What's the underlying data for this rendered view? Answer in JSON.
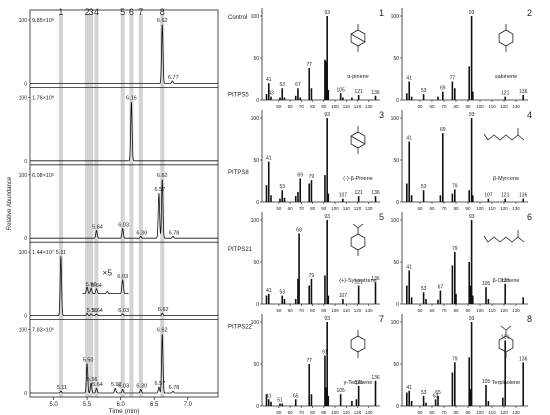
{
  "chart_data": [
    {
      "type": "line",
      "xlabel": "Time (min)",
      "ylabel": "Relative Abundance",
      "xlim": [
        4.65,
        7.45
      ],
      "x_ticks": [
        "5.0",
        "5.5",
        "6.0",
        "6.5",
        "7.0"
      ],
      "peak_markers": [
        {
          "label": "1",
          "x": 5.11
        },
        {
          "label": "2",
          "x": 5.5
        },
        {
          "label": "3",
          "x": 5.56
        },
        {
          "label": "4",
          "x": 5.64
        },
        {
          "label": "5",
          "x": 6.03
        },
        {
          "label": "6",
          "x": 6.16
        },
        {
          "label": "7",
          "x": 6.3
        },
        {
          "label": "8",
          "x": 6.62
        }
      ],
      "traces": [
        {
          "name": "Control",
          "intensity": "9.85×10⁶",
          "peaks": [
            {
              "rt": 6.62,
              "rel": 100,
              "label": "6.62"
            },
            {
              "rt": 6.77,
              "rel": 4,
              "label": "6.77"
            }
          ]
        },
        {
          "name": "PITPS5",
          "intensity": "1.76×10⁸",
          "peaks": [
            {
              "rt": 6.16,
              "rel": 100,
              "label": "6.16"
            }
          ]
        },
        {
          "name": "PITPS8",
          "intensity": "6.08×10⁶",
          "peaks": [
            {
              "rt": 5.64,
              "rel": 13,
              "label": "5.64"
            },
            {
              "rt": 6.03,
              "rel": 16,
              "label": "6.03"
            },
            {
              "rt": 6.3,
              "rel": 3,
              "label": "6.30"
            },
            {
              "rt": 6.57,
              "rel": 76,
              "label": "6.57"
            },
            {
              "rt": 6.62,
              "rel": 100,
              "label": "6.62"
            },
            {
              "rt": 6.78,
              "rel": 3,
              "label": "6.78"
            }
          ]
        },
        {
          "name": "PITPS21",
          "intensity": "1.44×10⁷",
          "peaks": [
            {
              "rt": 5.11,
              "rel": 100,
              "label": "5.11"
            },
            {
              "rt": 5.5,
              "rel": 4,
              "label": ""
            },
            {
              "rt": 5.56,
              "rel": 3,
              "label": "5.56"
            },
            {
              "rt": 5.64,
              "rel": 3,
              "label": "5.64"
            },
            {
              "rt": 6.03,
              "rel": 3,
              "label": "6.03"
            },
            {
              "rt": 6.62,
              "rel": 4,
              "label": "6.62"
            }
          ],
          "inset": {
            "factor": "×5",
            "peaks": [
              {
                "rt": 5.5,
                "rel": 22,
                "label": ""
              },
              {
                "rt": 5.56,
                "rel": 18,
                "label": "5.56"
              },
              {
                "rt": 5.64,
                "rel": 16,
                "label": "5.64"
              },
              {
                "rt": 5.8,
                "rel": 7,
                "label": ""
              },
              {
                "rt": 6.03,
                "rel": 45,
                "label": "6.03"
              }
            ]
          }
        },
        {
          "name": "PITPS22",
          "intensity": "7.83×10⁶",
          "peaks": [
            {
              "rt": 5.11,
              "rel": 3,
              "label": "5.11"
            },
            {
              "rt": 5.5,
              "rel": 50,
              "label": "5.50"
            },
            {
              "rt": 5.56,
              "rel": 17,
              "label": "5.56"
            },
            {
              "rt": 5.64,
              "rel": 8,
              "label": "5.64"
            },
            {
              "rt": 5.92,
              "rel": 8,
              "label": "5.92"
            },
            {
              "rt": 6.03,
              "rel": 6,
              "label": "6.03"
            },
            {
              "rt": 6.3,
              "rel": 6,
              "label": "6.30"
            },
            {
              "rt": 6.57,
              "rel": 10,
              "label": "6.57"
            },
            {
              "rt": 6.62,
              "rel": 100,
              "label": "6.62"
            },
            {
              "rt": 6.78,
              "rel": 3,
              "label": "6.78"
            }
          ]
        }
      ]
    },
    {
      "type": "bar",
      "xlim": [
        35,
        140
      ],
      "ylim": [
        0,
        100
      ],
      "x_ticks": [
        50,
        60,
        70,
        80,
        90,
        100,
        110,
        120,
        130
      ],
      "y_ticks": [
        0,
        50,
        100
      ],
      "spectra": [
        {
          "number": "1",
          "compound": "α-pinene",
          "peaks": [
            {
              "mz": 39,
              "i": 7
            },
            {
              "mz": 41,
              "i": 20,
              "label": "41"
            },
            {
              "mz": 43,
              "i": 4,
              "label": "43"
            },
            {
              "mz": 51,
              "i": 3
            },
            {
              "mz": 53,
              "i": 14,
              "label": "53"
            },
            {
              "mz": 55,
              "i": 3
            },
            {
              "mz": 65,
              "i": 5
            },
            {
              "mz": 67,
              "i": 14,
              "label": "67"
            },
            {
              "mz": 69,
              "i": 3
            },
            {
              "mz": 77,
              "i": 38,
              "label": "77"
            },
            {
              "mz": 79,
              "i": 14
            },
            {
              "mz": 91,
              "i": 48
            },
            {
              "mz": 92,
              "i": 46
            },
            {
              "mz": 93,
              "i": 100,
              "label": "93"
            },
            {
              "mz": 94,
              "i": 12
            },
            {
              "mz": 105,
              "i": 8,
              "label": "105"
            },
            {
              "mz": 107,
              "i": 3
            },
            {
              "mz": 115,
              "i": 3
            },
            {
              "mz": 121,
              "i": 6,
              "label": "121"
            },
            {
              "mz": 136,
              "i": 5,
              "label": "136"
            }
          ]
        },
        {
          "number": "2",
          "compound": "sabinene",
          "peaks": [
            {
              "mz": 39,
              "i": 8
            },
            {
              "mz": 41,
              "i": 22,
              "label": "41"
            },
            {
              "mz": 43,
              "i": 4
            },
            {
              "mz": 53,
              "i": 7,
              "label": "53"
            },
            {
              "mz": 65,
              "i": 4
            },
            {
              "mz": 69,
              "i": 10,
              "label": "69"
            },
            {
              "mz": 77,
              "i": 22,
              "label": "77"
            },
            {
              "mz": 79,
              "i": 14
            },
            {
              "mz": 91,
              "i": 40
            },
            {
              "mz": 93,
              "i": 100,
              "label": "93"
            },
            {
              "mz": 94,
              "i": 10
            },
            {
              "mz": 121,
              "i": 4,
              "label": "121"
            },
            {
              "mz": 136,
              "i": 6,
              "label": "136"
            }
          ]
        },
        {
          "number": "3",
          "compound": "(-)-β-Pinene",
          "peaks": [
            {
              "mz": 39,
              "i": 20
            },
            {
              "mz": 41,
              "i": 48,
              "label": "41"
            },
            {
              "mz": 43,
              "i": 8
            },
            {
              "mz": 51,
              "i": 4
            },
            {
              "mz": 53,
              "i": 14,
              "label": "53"
            },
            {
              "mz": 55,
              "i": 5
            },
            {
              "mz": 65,
              "i": 7
            },
            {
              "mz": 67,
              "i": 12
            },
            {
              "mz": 69,
              "i": 28,
              "label": "69"
            },
            {
              "mz": 77,
              "i": 22
            },
            {
              "mz": 79,
              "i": 26,
              "label": "79"
            },
            {
              "mz": 91,
              "i": 32
            },
            {
              "mz": 93,
              "i": 100,
              "label": "93"
            },
            {
              "mz": 94,
              "i": 10
            },
            {
              "mz": 107,
              "i": 4,
              "label": "107"
            },
            {
              "mz": 121,
              "i": 7,
              "label": "121"
            },
            {
              "mz": 136,
              "i": 7,
              "label": "136"
            }
          ]
        },
        {
          "number": "4",
          "compound": "β-Myrcene",
          "peaks": [
            {
              "mz": 39,
              "i": 22
            },
            {
              "mz": 41,
              "i": 72,
              "label": "41"
            },
            {
              "mz": 43,
              "i": 8
            },
            {
              "mz": 53,
              "i": 14,
              "label": "53"
            },
            {
              "mz": 67,
              "i": 8
            },
            {
              "mz": 69,
              "i": 82,
              "label": "69"
            },
            {
              "mz": 77,
              "i": 10
            },
            {
              "mz": 79,
              "i": 15,
              "label": "79"
            },
            {
              "mz": 91,
              "i": 14
            },
            {
              "mz": 93,
              "i": 100,
              "label": "93"
            },
            {
              "mz": 94,
              "i": 8
            },
            {
              "mz": 107,
              "i": 4,
              "label": "107"
            },
            {
              "mz": 121,
              "i": 4,
              "label": "121"
            },
            {
              "mz": 136,
              "i": 4,
              "label": "136"
            }
          ]
        },
        {
          "number": "5",
          "compound": "(+)-Sylvestrene",
          "peaks": [
            {
              "mz": 39,
              "i": 10
            },
            {
              "mz": 41,
              "i": 12,
              "label": "41"
            },
            {
              "mz": 53,
              "i": 10,
              "label": "53"
            },
            {
              "mz": 55,
              "i": 6
            },
            {
              "mz": 65,
              "i": 6
            },
            {
              "mz": 67,
              "i": 30
            },
            {
              "mz": 68,
              "i": 84,
              "label": "68"
            },
            {
              "mz": 77,
              "i": 22
            },
            {
              "mz": 79,
              "i": 30,
              "label": "79"
            },
            {
              "mz": 91,
              "i": 34
            },
            {
              "mz": 93,
              "i": 100,
              "label": "93"
            },
            {
              "mz": 94,
              "i": 10
            },
            {
              "mz": 107,
              "i": 6,
              "label": "107"
            },
            {
              "mz": 121,
              "i": 22,
              "label": "121"
            },
            {
              "mz": 136,
              "i": 26,
              "label": "136"
            }
          ]
        },
        {
          "number": "6",
          "compound": "β-Ocimene",
          "peaks": [
            {
              "mz": 39,
              "i": 22
            },
            {
              "mz": 41,
              "i": 40,
              "label": "41"
            },
            {
              "mz": 43,
              "i": 8
            },
            {
              "mz": 53,
              "i": 14,
              "label": "53"
            },
            {
              "mz": 55,
              "i": 6
            },
            {
              "mz": 65,
              "i": 5
            },
            {
              "mz": 67,
              "i": 16,
              "label": "67"
            },
            {
              "mz": 77,
              "i": 46
            },
            {
              "mz": 79,
              "i": 62,
              "label": "79"
            },
            {
              "mz": 80,
              "i": 12
            },
            {
              "mz": 91,
              "i": 50
            },
            {
              "mz": 92,
              "i": 22
            },
            {
              "mz": 93,
              "i": 100,
              "label": "93"
            },
            {
              "mz": 94,
              "i": 10
            },
            {
              "mz": 105,
              "i": 20,
              "label": "105"
            },
            {
              "mz": 107,
              "i": 6
            },
            {
              "mz": 121,
              "i": 24,
              "label": "121"
            },
            {
              "mz": 136,
              "i": 8
            }
          ]
        },
        {
          "number": "7",
          "compound": "γ-Terpinene",
          "peaks": [
            {
              "mz": 39,
              "i": 14
            },
            {
              "mz": 41,
              "i": 8,
              "label": "41"
            },
            {
              "mz": 43,
              "i": 5
            },
            {
              "mz": 51,
              "i": 3,
              "label": "51"
            },
            {
              "mz": 53,
              "i": 3
            },
            {
              "mz": 65,
              "i": 8,
              "label": "65"
            },
            {
              "mz": 77,
              "i": 50,
              "label": "77"
            },
            {
              "mz": 79,
              "i": 14
            },
            {
              "mz": 91,
              "i": 60,
              "label": "91"
            },
            {
              "mz": 92,
              "i": 22
            },
            {
              "mz": 93,
              "i": 100,
              "label": "93"
            },
            {
              "mz": 94,
              "i": 12
            },
            {
              "mz": 105,
              "i": 14,
              "label": "105"
            },
            {
              "mz": 115,
              "i": 6
            },
            {
              "mz": 119,
              "i": 8
            },
            {
              "mz": 121,
              "i": 24,
              "label": "121"
            },
            {
              "mz": 136,
              "i": 30,
              "label": "136"
            }
          ]
        },
        {
          "number": "8",
          "compound": "Terpinolene",
          "peaks": [
            {
              "mz": 39,
              "i": 16
            },
            {
              "mz": 41,
              "i": 18,
              "label": "41"
            },
            {
              "mz": 43,
              "i": 6
            },
            {
              "mz": 53,
              "i": 12,
              "label": "53"
            },
            {
              "mz": 55,
              "i": 4
            },
            {
              "mz": 63,
              "i": 8,
              "label": "63"
            },
            {
              "mz": 65,
              "i": 12,
              "label": "65"
            },
            {
              "mz": 77,
              "i": 40
            },
            {
              "mz": 79,
              "i": 52,
              "label": "79"
            },
            {
              "mz": 91,
              "i": 58
            },
            {
              "mz": 92,
              "i": 20
            },
            {
              "mz": 93,
              "i": 100,
              "label": "93"
            },
            {
              "mz": 105,
              "i": 25,
              "label": "105"
            },
            {
              "mz": 107,
              "i": 6
            },
            {
              "mz": 119,
              "i": 10
            },
            {
              "mz": 121,
              "i": 78,
              "label": "121"
            },
            {
              "mz": 136,
              "i": 52,
              "label": "136"
            }
          ]
        }
      ]
    }
  ],
  "colors": {
    "line": "#111111",
    "marker_band": "#d3d3d3",
    "axis": "#222222"
  }
}
